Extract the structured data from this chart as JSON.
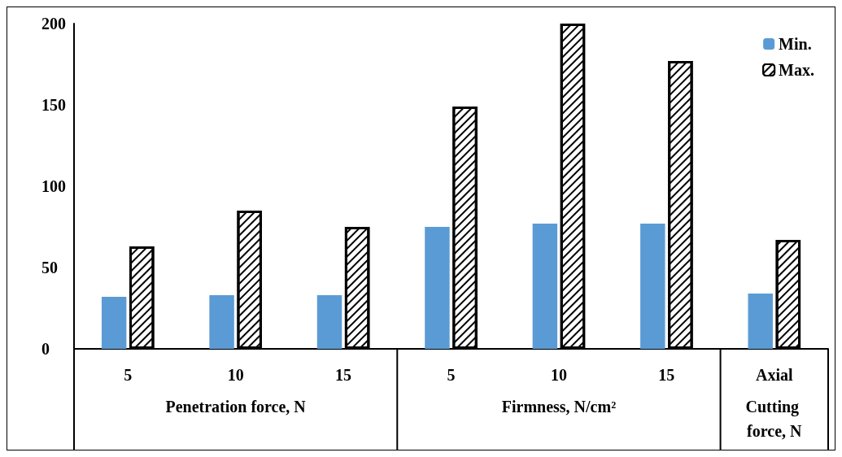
{
  "chart_data": {
    "type": "bar",
    "categories": [
      "5",
      "10",
      "15",
      "5",
      "10",
      "15",
      "Axial"
    ],
    "series": [
      {
        "name": "Min.",
        "color": "#5b9bd5",
        "values": [
          32,
          33,
          33,
          75,
          77,
          77,
          34
        ]
      },
      {
        "name": "Max.",
        "color": "#ffffff",
        "values": [
          63,
          85,
          75,
          149,
          200,
          177,
          67
        ]
      }
    ],
    "annotations": [
      "Penetration force, N",
      "Firmness, N/cm²",
      "Cutting force, N"
    ],
    "ylim": [
      0,
      200
    ],
    "yticks": [
      0,
      50,
      100,
      150,
      200
    ],
    "grid": false,
    "legend": "top right"
  }
}
